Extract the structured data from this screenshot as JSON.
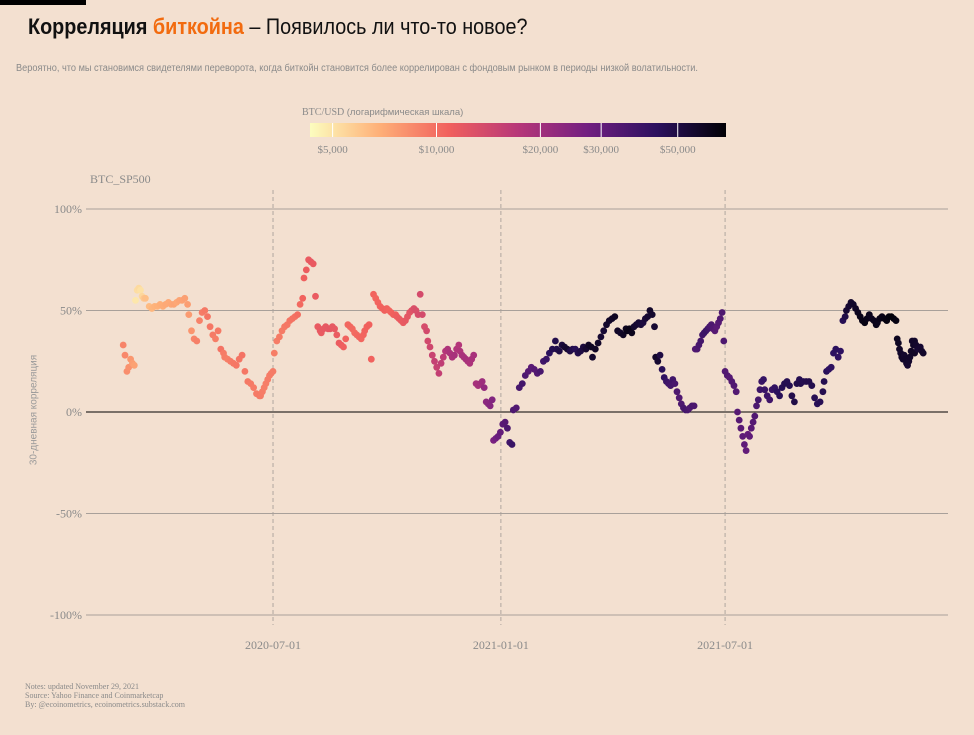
{
  "title": {
    "part1": "Корреляция ",
    "part2": "биткойна",
    "part3": " – Появилось ли что-то новое?"
  },
  "subtitle": "Вероятно, что мы становимся свидетелями переворота, когда биткойн становится более коррелирован с фондовым рынком в периоды низкой волатильности.",
  "legend": {
    "title": "BTC/USD",
    "subtitle": "(логарифмическая шкала)",
    "ticks": [
      {
        "value": 5000,
        "label": "$5,000"
      },
      {
        "value": 10000,
        "label": "$10,000"
      },
      {
        "value": 20000,
        "label": "$20,000"
      },
      {
        "value": 30000,
        "label": "$30,000"
      },
      {
        "value": 50000,
        "label": "$50,000"
      }
    ],
    "range": [
      4300,
      69000
    ]
  },
  "footer": {
    "notes": "Notes: updated November 29, 2021",
    "source": "Source: Yahoo Finance and Coinmarketcap",
    "by": "By: @ecoinometrics, ecoinometrics.substack.com"
  },
  "colors": {
    "background": "#f3e0d0",
    "accent": "#f26b0f",
    "grid": "#a8a09a",
    "zero_line": "#000000",
    "colormap": [
      "#fcfdbf",
      "#feb078",
      "#f1605d",
      "#b73779",
      "#721f81",
      "#2c115f",
      "#000004"
    ]
  },
  "chart_data": {
    "type": "scatter",
    "series_label": "BTC_SP500",
    "ylabel": "30-дневная корреляция",
    "ylim": [
      -1.0,
      1.0
    ],
    "yticks": [
      {
        "value": 1.0,
        "label": "100%"
      },
      {
        "value": 0.5,
        "label": "50%"
      },
      {
        "value": 0.0,
        "label": "0%"
      },
      {
        "value": -0.5,
        "label": "-50%"
      },
      {
        "value": -1.0,
        "label": "-100%"
      }
    ],
    "xlim": [
      "2020-02-01",
      "2021-12-28"
    ],
    "xticks": [
      "2020-07-01",
      "2021-01-01",
      "2021-07-01"
    ],
    "grid": "horizontal solid, vertical dashed",
    "color_encoding": "BTC/USD price, log scale",
    "segments": [
      {
        "start": "2020-03-02",
        "end": "2020-03-11",
        "corr": [
          0.33,
          0.28,
          0.2,
          0.22,
          0.26,
          0.24,
          0.23
        ],
        "price": [
          8800,
          8600,
          8300,
          8100,
          7900,
          7600,
          7400
        ]
      },
      {
        "start": "2020-03-12",
        "end": "2020-03-20",
        "corr": [
          0.55,
          0.6,
          0.61,
          0.6,
          0.57,
          0.56,
          0.56
        ],
        "price": [
          4900,
          5200,
          5300,
          5100,
          5400,
          5900,
          6200
        ]
      },
      {
        "start": "2020-03-23",
        "end": "2020-04-23",
        "corr": [
          0.52,
          0.51,
          0.52,
          0.52,
          0.53,
          0.52,
          0.53,
          0.54,
          0.53,
          0.53,
          0.54,
          0.55,
          0.55,
          0.56,
          0.53
        ],
        "price": [
          6400,
          6600,
          6700,
          6800,
          6900,
          7000,
          7100,
          7100,
          7200,
          7300,
          7200,
          7300,
          7400,
          7500,
          7600
        ]
      },
      {
        "start": "2020-04-24",
        "end": "2020-05-22",
        "corr": [
          0.48,
          0.4,
          0.36,
          0.35,
          0.45,
          0.49,
          0.5,
          0.47,
          0.42,
          0.38,
          0.36,
          0.4,
          0.31,
          0.29
        ],
        "price": [
          7700,
          8000,
          8800,
          9000,
          8900,
          9200,
          9400,
          9600,
          9500,
          9300,
          9100,
          9400,
          9700,
          9200
        ]
      },
      {
        "start": "2020-05-23",
        "end": "2020-06-20",
        "corr": [
          0.27,
          0.26,
          0.25,
          0.24,
          0.23,
          0.26,
          0.28,
          0.2,
          0.15,
          0.14,
          0.12,
          0.09,
          0.08
        ],
        "price": [
          9100,
          9000,
          9200,
          9400,
          9500,
          9600,
          9700,
          9500,
          9400,
          9300,
          9200,
          9300,
          9400
        ]
      },
      {
        "start": "2020-06-21",
        "end": "2020-07-01",
        "corr": [
          0.08,
          0.1,
          0.12,
          0.14,
          0.16,
          0.18,
          0.19,
          0.2
        ],
        "price": [
          9300,
          9200,
          9100,
          9100,
          9200,
          9200,
          9300,
          9300
        ]
      },
      {
        "start": "2020-07-02",
        "end": "2020-07-25",
        "corr": [
          0.29,
          0.35,
          0.37,
          0.4,
          0.42,
          0.43,
          0.45,
          0.46,
          0.47,
          0.48,
          0.53,
          0.56
        ],
        "price": [
          9100,
          9200,
          9300,
          9300,
          9400,
          9500,
          9600,
          9700,
          9800,
          10000,
          10300,
          10700
        ]
      },
      {
        "start": "2020-07-26",
        "end": "2020-08-08",
        "corr": [
          0.66,
          0.7,
          0.75,
          0.74,
          0.73,
          0.57,
          0.42,
          0.4
        ],
        "price": [
          11000,
          11300,
          11500,
          11700,
          11600,
          11500,
          11600,
          11700
        ]
      },
      {
        "start": "2020-08-09",
        "end": "2020-09-12",
        "corr": [
          0.39,
          0.41,
          0.42,
          0.41,
          0.41,
          0.42,
          0.41,
          0.38,
          0.34,
          0.33,
          0.32,
          0.36,
          0.43,
          0.42,
          0.41,
          0.39,
          0.38,
          0.37,
          0.36,
          0.38
        ],
        "price": [
          11600,
          11700,
          11800,
          11900,
          12000,
          11800,
          11700,
          11500,
          11400,
          11200,
          11000,
          10700,
          10500,
          10400,
          10300,
          10200,
          10300,
          10400,
          10500,
          10600
        ]
      },
      {
        "start": "2020-09-13",
        "end": "2020-10-08",
        "corr": [
          0.4,
          0.42,
          0.43,
          0.26,
          0.58,
          0.56,
          0.54,
          0.52,
          0.51,
          0.5,
          0.51,
          0.5,
          0.49,
          0.48,
          0.48
        ],
        "price": [
          10700,
          10800,
          10900,
          10700,
          10600,
          10500,
          10600,
          10700,
          10800,
          10900,
          10700,
          10600,
          10700,
          10900,
          11000
        ]
      },
      {
        "start": "2020-10-09",
        "end": "2020-11-02",
        "corr": [
          0.47,
          0.46,
          0.45,
          0.44,
          0.45,
          0.47,
          0.49,
          0.5,
          0.51,
          0.5,
          0.48,
          0.58,
          0.48,
          0.42,
          0.4
        ],
        "price": [
          11200,
          11400,
          11500,
          11600,
          11800,
          12000,
          12200,
          12500,
          13000,
          13200,
          13400,
          13700,
          13800,
          13600,
          13900
        ]
      },
      {
        "start": "2020-11-03",
        "end": "2020-11-28",
        "corr": [
          0.35,
          0.32,
          0.28,
          0.25,
          0.22,
          0.19,
          0.24,
          0.27,
          0.3,
          0.31,
          0.29,
          0.27,
          0.28,
          0.31,
          0.33
        ],
        "price": [
          14000,
          14300,
          15000,
          15500,
          15300,
          15700,
          16000,
          16300,
          17500,
          18300,
          18700,
          18500,
          19000,
          17800,
          17600
        ]
      },
      {
        "start": "2020-11-29",
        "end": "2020-12-10",
        "corr": [
          0.3,
          0.28,
          0.27,
          0.26,
          0.25,
          0.24,
          0.26,
          0.28
        ],
        "price": [
          18200,
          18800,
          19000,
          19200,
          19100,
          18600,
          18800,
          19000
        ]
      },
      {
        "start": "2020-12-12",
        "end": "2020-12-25",
        "corr": [
          0.14,
          0.13,
          0.14,
          0.15,
          0.12,
          0.05,
          0.04,
          0.03,
          0.06
        ],
        "price": [
          19300,
          19400,
          19800,
          20500,
          22000,
          23000,
          23500,
          24000,
          24500
        ]
      },
      {
        "start": "2020-12-26",
        "end": "2021-01-10",
        "corr": [
          -0.14,
          -0.13,
          -0.12,
          -0.1,
          -0.06,
          -0.05,
          -0.08,
          -0.15,
          -0.16
        ],
        "price": [
          26000,
          27500,
          29000,
          30000,
          32000,
          33000,
          35000,
          38000,
          40000
        ]
      },
      {
        "start": "2021-01-11",
        "end": "2021-02-14",
        "corr": [
          0.01,
          0.02,
          0.12,
          0.14,
          0.18,
          0.2,
          0.22,
          0.21,
          0.19,
          0.2,
          0.25,
          0.26,
          0.29,
          0.31,
          0.35
        ],
        "price": [
          35000,
          34000,
          36000,
          37000,
          35000,
          33000,
          32000,
          33000,
          34000,
          36000,
          38000,
          40000,
          44000,
          47000,
          48000
        ]
      },
      {
        "start": "2021-02-15",
        "end": "2021-03-15",
        "corr": [
          0.31,
          0.3,
          0.33,
          0.32,
          0.31,
          0.3,
          0.31,
          0.31,
          0.29,
          0.3,
          0.32,
          0.31,
          0.33,
          0.32
        ],
        "price": [
          48000,
          50000,
          52000,
          55000,
          56000,
          50000,
          48000,
          46000,
          48000,
          50000,
          52000,
          55000,
          58000,
          59000
        ]
      },
      {
        "start": "2021-03-16",
        "end": "2021-04-12",
        "corr": [
          0.27,
          0.31,
          0.34,
          0.37,
          0.4,
          0.43,
          0.45,
          0.46,
          0.47,
          0.4,
          0.39,
          0.38,
          0.41
        ],
        "price": [
          56000,
          58000,
          57000,
          55000,
          54000,
          56000,
          57000,
          58000,
          59000,
          58000,
          57000,
          59000,
          60000
        ]
      },
      {
        "start": "2021-04-13",
        "end": "2021-05-05",
        "corr": [
          0.4,
          0.41,
          0.39,
          0.42,
          0.43,
          0.44,
          0.43,
          0.44,
          0.46,
          0.47,
          0.5,
          0.48,
          0.42
        ],
        "price": [
          62000,
          63000,
          61000,
          56000,
          55000,
          54000,
          53000,
          51000,
          53000,
          55000,
          57000,
          56000,
          55000
        ]
      },
      {
        "start": "2021-05-06",
        "end": "2021-06-06",
        "corr": [
          0.27,
          0.25,
          0.28,
          0.21,
          0.17,
          0.15,
          0.14,
          0.13,
          0.16,
          0.14,
          0.1,
          0.07,
          0.04,
          0.02,
          0.01,
          0.01,
          0.02,
          0.03,
          0.03
        ],
        "price": [
          57000,
          55000,
          50000,
          45000,
          43000,
          40000,
          38000,
          37000,
          38000,
          36000,
          35000,
          34000,
          35000,
          36000,
          37000,
          36000,
          35000,
          36000,
          35500
        ]
      },
      {
        "start": "2021-06-07",
        "end": "2021-06-30",
        "corr": [
          0.31,
          0.31,
          0.33,
          0.35,
          0.38,
          0.39,
          0.4,
          0.41,
          0.42,
          0.43,
          0.41,
          0.4,
          0.42,
          0.44,
          0.46,
          0.49,
          0.35
        ],
        "price": [
          34000,
          35000,
          36000,
          37000,
          38000,
          39000,
          40000,
          38000,
          36000,
          35000,
          34000,
          33000,
          32000,
          33000,
          34000,
          35000,
          35000
        ]
      },
      {
        "start": "2021-07-01",
        "end": "2021-07-10",
        "corr": [
          0.2,
          0.18,
          0.17,
          0.15,
          0.13,
          0.1
        ],
        "price": [
          33500,
          34000,
          33000,
          34000,
          33800,
          33500
        ]
      },
      {
        "start": "2021-07-11",
        "end": "2021-08-01",
        "corr": [
          0.0,
          -0.04,
          -0.08,
          -0.12,
          -0.16,
          -0.19,
          -0.11,
          -0.12,
          -0.08,
          -0.05,
          -0.02,
          0.03,
          0.06,
          0.11,
          0.15,
          0.16
        ],
        "price": [
          33000,
          32500,
          32000,
          31500,
          31000,
          30500,
          30000,
          31000,
          32000,
          33000,
          34000,
          35000,
          37000,
          39000,
          40000,
          41000
        ]
      },
      {
        "start": "2021-08-02",
        "end": "2021-08-30",
        "corr": [
          0.11,
          0.08,
          0.06,
          0.11,
          0.12,
          0.1,
          0.08,
          0.12,
          0.14,
          0.15,
          0.13,
          0.08,
          0.05,
          0.14,
          0.16
        ],
        "price": [
          40000,
          39000,
          38000,
          40000,
          42000,
          44000,
          45000,
          46000,
          47000,
          46500,
          47000,
          48000,
          49000,
          48000,
          47000
        ]
      },
      {
        "start": "2021-08-31",
        "end": "2021-09-18",
        "corr": [
          0.14,
          0.15,
          0.15,
          0.15,
          0.13,
          0.07,
          0.04,
          0.05,
          0.1
        ],
        "price": [
          48000,
          47000,
          47500,
          48000,
          47500,
          46000,
          45000,
          46000,
          47000
        ]
      },
      {
        "start": "2021-09-19",
        "end": "2021-10-06",
        "corr": [
          0.15,
          0.2,
          0.21,
          0.22,
          0.29,
          0.31,
          0.27,
          0.3,
          0.45,
          0.47
        ],
        "price": [
          47000,
          45000,
          43000,
          43000,
          43000,
          44000,
          42000,
          43000,
          46000,
          49000
        ]
      },
      {
        "start": "2021-10-07",
        "end": "2021-10-31",
        "corr": [
          0.5,
          0.52,
          0.54,
          0.53,
          0.51,
          0.49,
          0.47,
          0.45,
          0.44,
          0.46,
          0.48,
          0.46,
          0.45,
          0.43
        ],
        "price": [
          54000,
          55000,
          56000,
          57000,
          58000,
          60000,
          62000,
          63000,
          64000,
          62000,
          61000,
          60000,
          61000,
          62000
        ]
      },
      {
        "start": "2021-11-01",
        "end": "2021-11-16",
        "corr": [
          0.44,
          0.46,
          0.47,
          0.46,
          0.45,
          0.47,
          0.47,
          0.46,
          0.45
        ],
        "price": [
          61000,
          62000,
          63000,
          64000,
          65000,
          66000,
          67000,
          66000,
          64000
        ]
      },
      {
        "start": "2021-11-17",
        "end": "2021-12-01",
        "corr": [
          0.36,
          0.34,
          0.31,
          0.29,
          0.27,
          0.26,
          0.28,
          0.26,
          0.24,
          0.23,
          0.25,
          0.27,
          0.3,
          0.35,
          0.33,
          0.29
        ],
        "price": [
          60000,
          59000,
          58000,
          57000,
          58000,
          57000,
          56000,
          57000,
          56000,
          55000,
          56000,
          57000,
          58000,
          57000,
          57500,
          58000
        ]
      },
      {
        "start": "2021-12-01",
        "end": "2021-12-08",
        "corr": [
          0.35,
          0.33,
          0.31,
          0.31,
          0.32,
          0.3,
          0.29
        ],
        "price": [
          57000,
          56000,
          55000,
          54000,
          55000,
          56000,
          57000
        ]
      }
    ]
  }
}
